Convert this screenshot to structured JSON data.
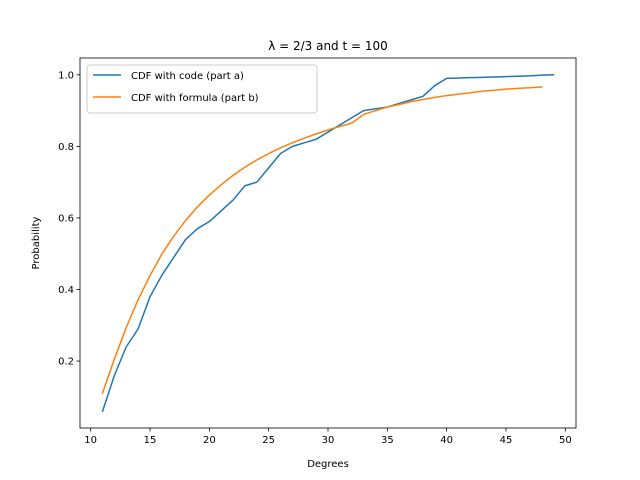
{
  "chart_data": {
    "type": "line",
    "title": "λ = 2/3 and t = 100",
    "xlabel": "Degrees",
    "ylabel": "Probability",
    "xlim": [
      9.1,
      50.9
    ],
    "ylim": [
      0.013,
      1.047
    ],
    "xticks": [
      10,
      15,
      20,
      25,
      30,
      35,
      40,
      45,
      50
    ],
    "yticks": [
      0.2,
      0.4,
      0.6,
      0.8,
      1.0
    ],
    "ytick_labels": [
      "0.2",
      "0.4",
      "0.6",
      "0.8",
      "1.0"
    ],
    "grid": false,
    "legend_position": "upper-left",
    "series": [
      {
        "name": "CDF with code (part a)",
        "color": "#1f77b4",
        "x": [
          11,
          12,
          13,
          14,
          15,
          16,
          17,
          18,
          19,
          20,
          21,
          22,
          23,
          24,
          25,
          26,
          27,
          28,
          29,
          30,
          31,
          32,
          33,
          34,
          35,
          36,
          37,
          38,
          39,
          40,
          41,
          42,
          43,
          44,
          45,
          46,
          47,
          48,
          49
        ],
        "y": [
          0.06,
          0.16,
          0.24,
          0.29,
          0.38,
          0.44,
          0.49,
          0.54,
          0.57,
          0.59,
          0.62,
          0.65,
          0.69,
          0.7,
          0.74,
          0.78,
          0.8,
          0.81,
          0.82,
          0.84,
          0.86,
          0.88,
          0.9,
          0.905,
          0.91,
          0.92,
          0.93,
          0.94,
          0.97,
          0.99,
          0.991,
          0.992,
          0.993,
          0.994,
          0.995,
          0.996,
          0.997,
          0.999,
          1.0
        ]
      },
      {
        "name": "CDF with formula (part b)",
        "color": "#ff7f0e",
        "x": [
          11,
          12,
          13,
          14,
          15,
          16,
          17,
          18,
          19,
          20,
          21,
          22,
          23,
          24,
          25,
          26,
          27,
          28,
          29,
          30,
          31,
          32,
          33,
          34,
          35,
          36,
          37,
          38,
          39,
          40,
          41,
          42,
          43,
          44,
          45,
          46,
          47,
          48
        ],
        "y": [
          0.111,
          0.206,
          0.294,
          0.372,
          0.439,
          0.499,
          0.549,
          0.593,
          0.631,
          0.664,
          0.693,
          0.719,
          0.742,
          0.762,
          0.78,
          0.796,
          0.81,
          0.823,
          0.835,
          0.846,
          0.856,
          0.865,
          0.889,
          0.9,
          0.91,
          0.917,
          0.925,
          0.931,
          0.937,
          0.942,
          0.946,
          0.95,
          0.954,
          0.957,
          0.96,
          0.962,
          0.964,
          0.966
        ]
      }
    ]
  }
}
